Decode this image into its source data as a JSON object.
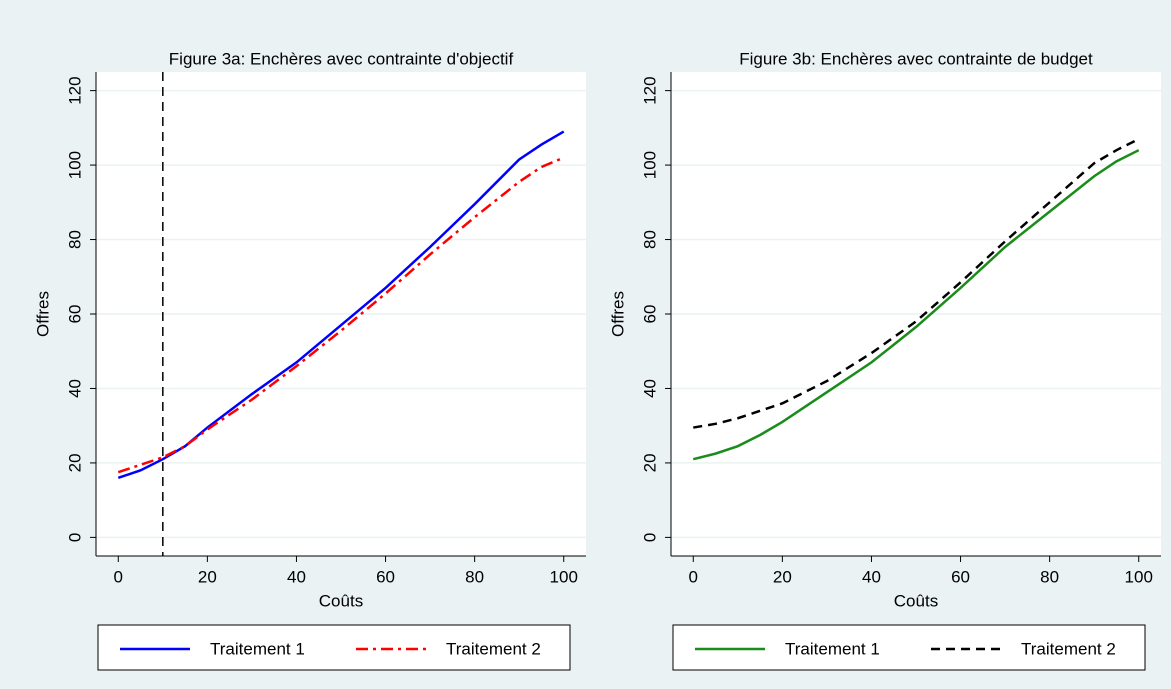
{
  "chart_data": [
    {
      "type": "line",
      "title": "Figure 3a: Enchères avec contrainte d'objectif",
      "x_label": "Coûts",
      "y_label": "Offres",
      "x": [
        0,
        5,
        10,
        15,
        20,
        30,
        40,
        50,
        60,
        70,
        80,
        90,
        95,
        100
      ],
      "series": [
        {
          "name": "Traitement 1",
          "color": "#0000ff",
          "dash": "solid",
          "values": [
            16,
            18,
            21,
            24.5,
            29.5,
            38.5,
            47,
            57,
            67,
            78,
            89.5,
            101.5,
            105.5,
            109
          ]
        },
        {
          "name": "Traitement 2",
          "color": "#ff0000",
          "dash": "dashdot",
          "values": [
            17.5,
            19.5,
            21.5,
            24.5,
            29,
            37,
            46,
            55.5,
            65.5,
            76,
            86,
            95.5,
            99.5,
            102
          ]
        }
      ],
      "vline": 10,
      "xlim": [
        -5,
        105
      ],
      "ylim": [
        -5,
        125
      ],
      "xticks": [
        0,
        20,
        40,
        60,
        80,
        100
      ],
      "yticks": [
        0,
        20,
        40,
        60,
        80,
        100,
        120
      ],
      "grid": true
    },
    {
      "type": "line",
      "title": "Figure 3b: Enchères avec contrainte de budget",
      "x_label": "Coûts",
      "y_label": "Offres",
      "x": [
        0,
        5,
        10,
        15,
        20,
        30,
        40,
        50,
        60,
        70,
        80,
        90,
        95,
        100
      ],
      "series": [
        {
          "name": "Traitement 1",
          "color": "#1a8c1a",
          "dash": "solid",
          "values": [
            21,
            22.5,
            24.5,
            27.5,
            31,
            39,
            47,
            56.5,
            67,
            78,
            87.5,
            97,
            101,
            104
          ]
        },
        {
          "name": "Traitement 2",
          "color": "#000000",
          "dash": "dash",
          "values": [
            29.5,
            30.5,
            32,
            34,
            36,
            42,
            49.5,
            58,
            68.5,
            79.5,
            90,
            100.5,
            104,
            107
          ]
        }
      ],
      "xlim": [
        -5,
        105
      ],
      "ylim": [
        -5,
        125
      ],
      "xticks": [
        0,
        20,
        40,
        60,
        80,
        100
      ],
      "yticks": [
        0,
        20,
        40,
        60,
        80,
        100,
        120
      ],
      "grid": true
    }
  ]
}
